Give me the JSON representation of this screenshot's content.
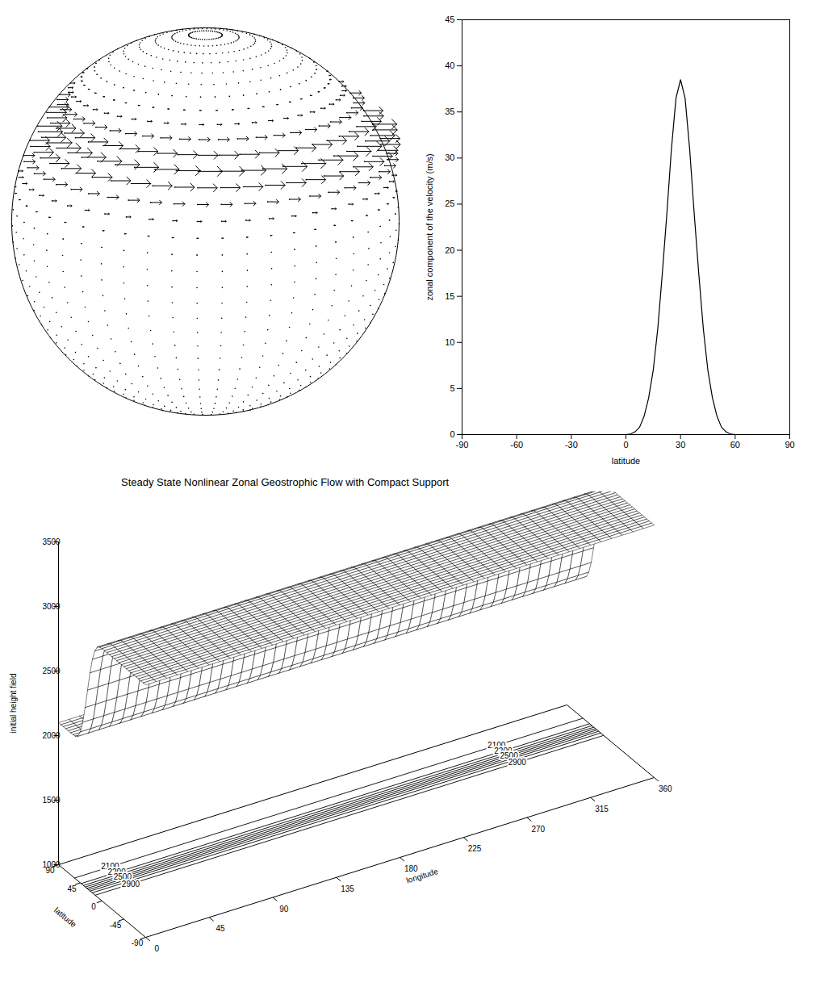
{
  "chart_data": [
    {
      "type": "vector_globe"
    },
    {
      "type": "line",
      "x_label": "latitude",
      "y_label": "zonal component of the velocity (m/s)",
      "color": "#000000",
      "x": [
        -90,
        -85,
        -80,
        -75,
        -70,
        -65,
        -60,
        -55,
        -50,
        -45,
        -40,
        -35,
        -30,
        -25,
        -20,
        -15,
        -10,
        -5,
        0,
        2.5,
        5,
        7.5,
        10,
        12.5,
        15,
        17.5,
        20,
        22.5,
        25,
        27.5,
        30,
        32.5,
        35,
        37.5,
        40,
        42.5,
        45,
        47.5,
        50,
        52.5,
        55,
        57.5,
        60,
        65,
        70,
        75,
        80,
        85,
        90
      ],
      "values": [
        0,
        0,
        0,
        0,
        0,
        0,
        0,
        0,
        0,
        0,
        0,
        0,
        0,
        0,
        0,
        0,
        0,
        0,
        0,
        0.05,
        0.3,
        0.8,
        2,
        4,
        7,
        11.5,
        17.5,
        24,
        31,
        36.5,
        38.5,
        36.5,
        31,
        24,
        17.5,
        11.5,
        7,
        4,
        2,
        0.8,
        0.3,
        0.05,
        0,
        0,
        0,
        0,
        0,
        0,
        0
      ],
      "xlim": [
        -90,
        90
      ],
      "xticks": [
        -90,
        -60,
        -30,
        0,
        30,
        60,
        90
      ],
      "ylim": [
        0,
        45
      ],
      "yticks": [
        0,
        5,
        10,
        15,
        20,
        25,
        30,
        35,
        40,
        45
      ]
    },
    {
      "type": "surface",
      "title": "Steady State Nonlinear Zonal Geostrophic Flow with Compact Support",
      "x_label": "longitude",
      "y_label": "latitude",
      "z_label": "initial height field",
      "xlim": [
        0,
        360
      ],
      "xticks": [
        0,
        45,
        90,
        135,
        180,
        225,
        270,
        315,
        360
      ],
      "ylim": [
        -90,
        90
      ],
      "yticks": [
        -90,
        -45,
        0,
        45,
        90
      ],
      "zlim": [
        1000,
        3500
      ],
      "zticks": [
        1000,
        1500,
        2000,
        2500,
        3000,
        3500
      ],
      "latitude": [
        -90,
        -85,
        -80,
        -75,
        -70,
        -65,
        -60,
        -55,
        -50,
        -45,
        -40,
        -35,
        -30,
        -25,
        -20,
        -15,
        -10,
        -5,
        0,
        5,
        10,
        15,
        20,
        25,
        30,
        35,
        40,
        45,
        50,
        55,
        60,
        65,
        70,
        75,
        80,
        85,
        90
      ],
      "height": [
        2955,
        2955,
        2955,
        2955,
        2955,
        2955,
        2955,
        2955,
        2955,
        2955,
        2955,
        2955,
        2955,
        2955,
        2955,
        2955,
        2955,
        2955,
        2955,
        2950,
        2935,
        2890,
        2810,
        2690,
        2540,
        2390,
        2260,
        2170,
        2120,
        2105,
        2100,
        2100,
        2100,
        2100,
        2100,
        2100,
        2100
      ],
      "contours": [
        {
          "level": 2100,
          "latitude": 57,
          "labeled": true
        },
        {
          "level": 2200,
          "latitude": 43.3,
          "labeled": true
        },
        {
          "level": 2300,
          "latitude": 38.5,
          "labeled": false
        },
        {
          "level": 2400,
          "latitude": 34.7,
          "labeled": false
        },
        {
          "level": 2500,
          "latitude": 31.3,
          "labeled": true
        },
        {
          "level": 2600,
          "latitude": 28,
          "labeled": false
        },
        {
          "level": 2700,
          "latitude": 24.6,
          "labeled": false
        },
        {
          "level": 2800,
          "latitude": 20.4,
          "labeled": false
        },
        {
          "level": 2900,
          "latitude": 14.4,
          "labeled": true
        }
      ]
    }
  ]
}
